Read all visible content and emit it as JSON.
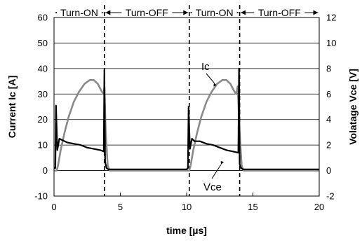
{
  "chart_data": {
    "type": "line",
    "xlabel": "time [µs]",
    "ylabel_left": "Current Ic [A]",
    "ylabel_right": "Volatage Vce [V]",
    "xlim": [
      0,
      20
    ],
    "ylim_left": [
      -10,
      60
    ],
    "ylim_right": [
      -2,
      12
    ],
    "x_ticks": [
      "0",
      "5",
      "10",
      "15",
      "20"
    ],
    "y_ticks_left": [
      "-10",
      "0",
      "10",
      "20",
      "30",
      "40",
      "50",
      "60"
    ],
    "y_ticks_right": [
      "-2",
      "0",
      "2",
      "4",
      "6",
      "8",
      "10",
      "12"
    ],
    "grid": "horizontal",
    "phases": [
      {
        "label": "Turn-ON",
        "start": 0,
        "end": 3.8
      },
      {
        "label": "Turn-OFF",
        "start": 3.8,
        "end": 10.2
      },
      {
        "label": "Turn-ON",
        "start": 10.2,
        "end": 14.0
      },
      {
        "label": "Turn-OFF",
        "start": 14.0,
        "end": 20
      }
    ],
    "annotations": [
      {
        "text": "Ic",
        "target_series": "Ic"
      },
      {
        "text": "Vce",
        "target_series": "Vce"
      }
    ],
    "series": [
      {
        "name": "Ic",
        "axis": "left",
        "color": "#8a8a8a",
        "x": [
          0,
          0.2,
          0.3,
          0.5,
          0.8,
          1.1,
          1.5,
          1.9,
          2.3,
          2.7,
          3.0,
          3.3,
          3.6,
          3.75,
          3.8,
          3.9,
          4.05,
          4.2,
          5.0,
          6.0,
          7.0,
          8.0,
          9.0,
          10.0,
          10.2,
          10.3,
          10.5,
          10.8,
          11.1,
          11.5,
          11.9,
          12.3,
          12.7,
          13.0,
          13.3,
          13.6,
          13.75,
          13.85,
          14.0,
          14.15,
          14.3,
          15.0,
          16.0,
          17.0,
          18.0,
          19.0,
          20.0
        ],
        "y": [
          0,
          0,
          2,
          8,
          15,
          21,
          27,
          31,
          34,
          35.5,
          35.5,
          34,
          31,
          30,
          33,
          15,
          2,
          0,
          0,
          0,
          0,
          0,
          0,
          0,
          0,
          2,
          8,
          15,
          21,
          27,
          31,
          34,
          35.5,
          35.5,
          34,
          31,
          30,
          33,
          15,
          2,
          0,
          0,
          0,
          0,
          0,
          0,
          0
        ]
      },
      {
        "name": "Vce",
        "axis": "right",
        "color": "#000000",
        "x": [
          0,
          0.1,
          0.15,
          0.25,
          0.4,
          0.6,
          1.0,
          1.5,
          2.0,
          2.5,
          3.0,
          3.5,
          3.75,
          3.8,
          3.85,
          3.95,
          4.1,
          4.3,
          5.0,
          6.0,
          7.0,
          8.0,
          9.0,
          10.0,
          10.1,
          10.15,
          10.25,
          10.4,
          10.6,
          11.0,
          11.5,
          12.0,
          12.5,
          13.0,
          13.5,
          13.9,
          13.95,
          14.0,
          14.1,
          14.25,
          14.5,
          15.0,
          16.0,
          17.0,
          18.0,
          19.0,
          20.0
        ],
        "y": [
          0.2,
          0.2,
          5.1,
          1.6,
          2.5,
          2.4,
          2.2,
          2.1,
          2.0,
          1.8,
          1.7,
          1.6,
          1.5,
          7.9,
          0.7,
          0.2,
          0.1,
          0.1,
          0.1,
          0.1,
          0.1,
          0.1,
          0.1,
          0.1,
          0.2,
          5.0,
          1.7,
          2.5,
          2.3,
          2.3,
          2.1,
          2.0,
          1.8,
          1.6,
          1.5,
          1.4,
          8.0,
          0.5,
          0.2,
          0.1,
          0.1,
          0.1,
          0.1,
          0.1,
          0.1,
          0.1,
          0.1
        ]
      }
    ]
  }
}
